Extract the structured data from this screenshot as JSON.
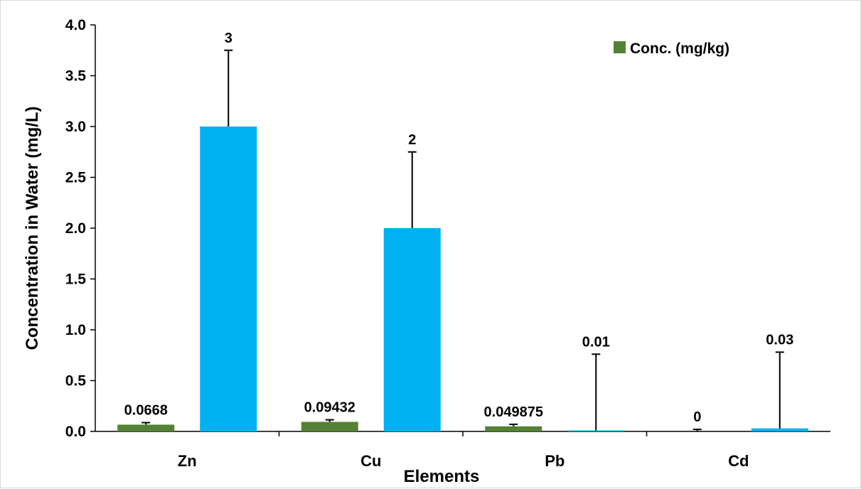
{
  "chart_data": {
    "type": "bar",
    "xlabel": "Elements",
    "ylabel": "Concentration in Water (mg/L)",
    "ylim": [
      0,
      4.0
    ],
    "yticks": [
      "0.0",
      "0.5",
      "1.0",
      "1.5",
      "2.0",
      "2.5",
      "3.0",
      "3.5",
      "4.0"
    ],
    "categories": [
      "Zn",
      "Cu",
      "Pb",
      "Cd"
    ],
    "grid": false,
    "legend_position": "top-right",
    "series": [
      {
        "name": "Conc. (mg/kg)",
        "color": "#548235",
        "values": [
          0.0668,
          0.09432,
          0.049875,
          0
        ],
        "labels": [
          "0.0668",
          "0.09432",
          "0.049875",
          "0"
        ],
        "error": [
          0.02,
          0.02,
          0.02,
          0.02
        ]
      },
      {
        "color": "#00b0f0",
        "values": [
          3,
          2,
          0.01,
          0.03
        ],
        "labels": [
          "3",
          "2",
          "0.01",
          "0.03"
        ],
        "error": [
          0.75,
          0.75,
          0.75,
          0.75
        ]
      }
    ]
  }
}
